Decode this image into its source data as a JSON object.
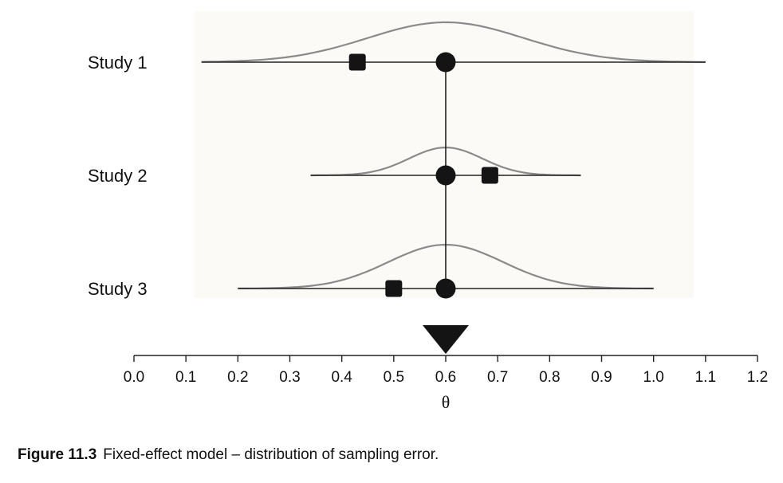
{
  "chart_data": {
    "type": "scatter",
    "xlabel": "θ",
    "xlim": [
      0.0,
      1.2
    ],
    "x_ticks": [
      "0.0",
      "0.1",
      "0.2",
      "0.3",
      "0.4",
      "0.5",
      "0.6",
      "0.7",
      "0.8",
      "0.9",
      "1.0",
      "1.1",
      "1.2"
    ],
    "true_effect": 0.6,
    "studies": [
      {
        "label": "Study 1",
        "observed": 0.43,
        "true": 0.6,
        "range": [
          0.13,
          1.1
        ],
        "sd": 0.15
      },
      {
        "label": "Study 2",
        "observed": 0.685,
        "true": 0.6,
        "range": [
          0.34,
          0.86
        ],
        "sd": 0.07
      },
      {
        "label": "Study 3",
        "observed": 0.5,
        "true": 0.6,
        "range": [
          0.2,
          1.0
        ],
        "sd": 0.11
      }
    ],
    "legend": "none",
    "grid": false,
    "colors": {
      "marker": "#141414",
      "curve": "#8a8a8a",
      "panel": "#fbfaf7"
    }
  },
  "caption": {
    "figure_number": "Figure 11.3",
    "text": "Fixed-effect model – distribution of sampling error."
  }
}
